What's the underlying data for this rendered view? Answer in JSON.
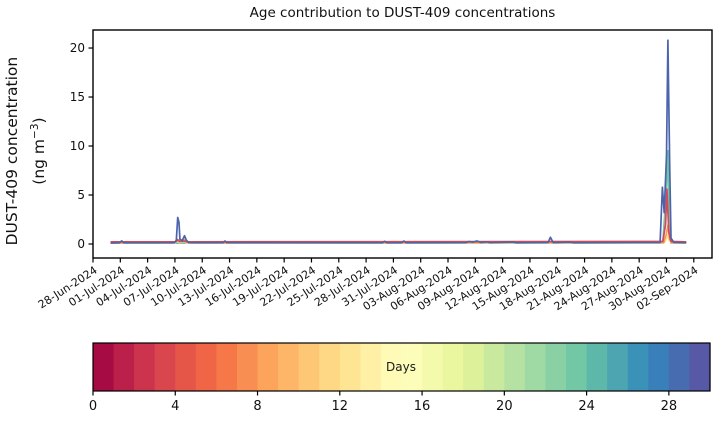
{
  "figure": {
    "title": "Age contribution to DUST-409 concentrations",
    "ylabel_line1": "DUST-409 concentration",
    "ylabel_unit_prefix": "(ng m",
    "ylabel_unit_sup": "−3",
    "ylabel_unit_suffix": ")",
    "colorbar_label": "Days"
  },
  "chart_data": {
    "type": "line",
    "title": "Age contribution to DUST-409 concentrations",
    "xlabel": "",
    "ylabel": "DUST-409 concentration (ng m−3)",
    "grid": false,
    "legend": "none",
    "x_axis": {
      "tick_labels": [
        "28-Jun-2024",
        "01-Jul-2024",
        "04-Jul-2024",
        "07-Jul-2024",
        "10-Jul-2024",
        "13-Jul-2024",
        "16-Jul-2024",
        "19-Jul-2024",
        "22-Jul-2024",
        "25-Jul-2024",
        "28-Jul-2024",
        "31-Jul-2024",
        "03-Aug-2024",
        "06-Aug-2024",
        "09-Aug-2024",
        "12-Aug-2024",
        "15-Aug-2024",
        "18-Aug-2024",
        "21-Aug-2024",
        "24-Aug-2024",
        "27-Aug-2024",
        "30-Aug-2024",
        "02-Sep-2024"
      ],
      "tick_days": [
        0,
        3,
        6,
        9,
        12,
        15,
        18,
        21,
        24,
        27,
        30,
        33,
        36,
        39,
        42,
        45,
        48,
        51,
        54,
        57,
        60,
        63,
        66
      ],
      "lim_days": [
        0,
        68
      ],
      "label_rotation_deg": -33
    },
    "y_axis": {
      "ticks": [
        0,
        5,
        10,
        15,
        20
      ],
      "lim": [
        -1.43,
        21.84
      ]
    },
    "annotations": {
      "main_peak": {
        "date": "30-Aug-2024",
        "value": 20.8
      },
      "secondary_peak": {
        "date": "07-Jul-2024",
        "value": 2.7
      },
      "baseline_level": 0.15
    },
    "series": [
      {
        "name": "teal-older-age",
        "color": "#6fc5a4",
        "points": [
          [
            2.0,
            0.09
          ],
          [
            62.6,
            0.1
          ],
          [
            62.95,
            5.0
          ],
          [
            63.15,
            9.5
          ],
          [
            63.3,
            0.8
          ],
          [
            63.5,
            0.09
          ],
          [
            65.1,
            0.09
          ]
        ]
      },
      {
        "name": "yellow-mid-age",
        "color": "#fee08b",
        "points": [
          [
            2.0,
            0.08
          ],
          [
            9.0,
            0.08
          ],
          [
            9.25,
            0.35
          ],
          [
            9.5,
            0.15
          ],
          [
            10.05,
            0.3
          ],
          [
            10.3,
            0.08
          ],
          [
            62.7,
            0.1
          ],
          [
            62.9,
            0.4
          ],
          [
            63.1,
            0.9
          ],
          [
            63.3,
            0.3
          ],
          [
            63.6,
            0.08
          ],
          [
            65.1,
            0.08
          ]
        ]
      },
      {
        "name": "orange-young-age",
        "color": "#f79a5d",
        "points": [
          [
            2.0,
            0.1
          ],
          [
            9.0,
            0.12
          ],
          [
            9.2,
            0.5
          ],
          [
            9.35,
            0.3
          ],
          [
            9.6,
            0.45
          ],
          [
            9.8,
            0.25
          ],
          [
            10.1,
            0.5
          ],
          [
            10.35,
            0.15
          ],
          [
            11.0,
            0.1
          ],
          [
            62.7,
            0.15
          ],
          [
            63.0,
            1.1
          ],
          [
            63.15,
            1.9
          ],
          [
            63.35,
            0.5
          ],
          [
            63.6,
            0.12
          ],
          [
            65.1,
            0.1
          ]
        ]
      },
      {
        "name": "red-youngest-age",
        "color": "#d6495a",
        "points": [
          [
            2.0,
            0.22
          ],
          [
            9.1,
            0.22
          ],
          [
            9.3,
            0.45
          ],
          [
            9.5,
            0.25
          ],
          [
            10.0,
            0.3
          ],
          [
            10.3,
            0.22
          ],
          [
            62.6,
            0.25
          ],
          [
            62.9,
            2.0
          ],
          [
            63.05,
            5.6
          ],
          [
            63.25,
            1.2
          ],
          [
            63.5,
            0.25
          ],
          [
            65.1,
            0.22
          ]
        ]
      },
      {
        "name": "blue-oldest-age",
        "color": "#4b64ab",
        "points": [
          [
            2.0,
            0.1
          ],
          [
            2.9,
            0.12
          ],
          [
            3.15,
            0.32
          ],
          [
            3.4,
            0.12
          ],
          [
            8.9,
            0.12
          ],
          [
            9.15,
            0.35
          ],
          [
            9.3,
            2.7
          ],
          [
            9.45,
            2.2
          ],
          [
            9.55,
            0.5
          ],
          [
            9.8,
            0.35
          ],
          [
            10.05,
            0.85
          ],
          [
            10.25,
            0.4
          ],
          [
            10.5,
            0.14
          ],
          [
            14.3,
            0.14
          ],
          [
            14.5,
            0.3
          ],
          [
            14.7,
            0.14
          ],
          [
            31.8,
            0.12
          ],
          [
            32.05,
            0.27
          ],
          [
            32.3,
            0.12
          ],
          [
            33.9,
            0.12
          ],
          [
            34.15,
            0.3
          ],
          [
            34.4,
            0.12
          ],
          [
            41.0,
            0.14
          ],
          [
            41.3,
            0.25
          ],
          [
            41.7,
            0.18
          ],
          [
            42.2,
            0.3
          ],
          [
            42.6,
            0.15
          ],
          [
            43.3,
            0.22
          ],
          [
            43.6,
            0.13
          ],
          [
            46.2,
            0.2
          ],
          [
            46.5,
            0.12
          ],
          [
            50.0,
            0.15
          ],
          [
            50.25,
            0.68
          ],
          [
            50.55,
            0.14
          ],
          [
            52.5,
            0.18
          ],
          [
            52.8,
            0.12
          ],
          [
            62.3,
            0.15
          ],
          [
            62.55,
            5.8
          ],
          [
            62.75,
            3.2
          ],
          [
            63.0,
            9.0
          ],
          [
            63.15,
            20.8
          ],
          [
            63.35,
            8.0
          ],
          [
            63.5,
            0.6
          ],
          [
            63.8,
            0.16
          ],
          [
            65.1,
            0.14
          ]
        ]
      }
    ],
    "colorbar": {
      "label": "Days",
      "ticks": [
        0,
        4,
        8,
        12,
        16,
        20,
        24,
        28
      ],
      "range": [
        0,
        30
      ],
      "n_segments": 30,
      "colormap": "Spectral",
      "anchors": [
        "#9e0142",
        "#d53e4f",
        "#f46d43",
        "#fdae61",
        "#fee08b",
        "#ffffbf",
        "#e6f598",
        "#abdda4",
        "#66c2a5",
        "#3288bd",
        "#5e4fa2"
      ]
    }
  }
}
